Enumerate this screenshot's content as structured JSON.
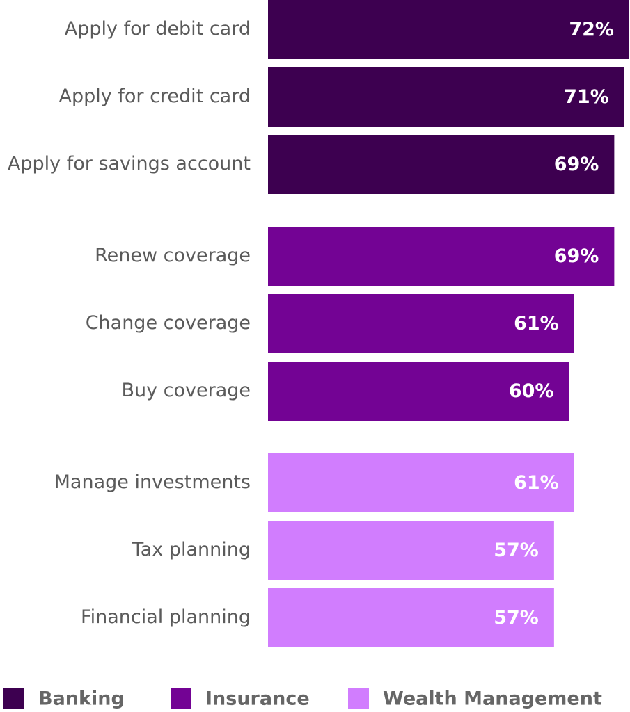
{
  "chart_data": {
    "type": "bar",
    "orientation": "horizontal",
    "categories": [
      "Apply for debit card",
      "Apply for credit card",
      "Apply for savings account",
      "Renew coverage",
      "Change coverage",
      "Buy coverage",
      "Manage investments",
      "Tax planning",
      "Financial planning"
    ],
    "series": [
      {
        "name": "Banking",
        "color": "#3d0050",
        "values": [
          72,
          71,
          69,
          null,
          null,
          null,
          null,
          null,
          null
        ],
        "value_labels": [
          "72%",
          "71%",
          "69%",
          null,
          null,
          null,
          null,
          null,
          null
        ]
      },
      {
        "name": "Insurance",
        "color": "#730394",
        "values": [
          null,
          null,
          null,
          69,
          61,
          60,
          null,
          null,
          null
        ],
        "value_labels": [
          null,
          null,
          null,
          "69%",
          "61%",
          "60%",
          null,
          null,
          null
        ]
      },
      {
        "name": "Wealth Management",
        "color": "#d17dfe",
        "values": [
          null,
          null,
          null,
          null,
          null,
          null,
          61,
          57,
          57
        ],
        "value_labels": [
          null,
          null,
          null,
          null,
          null,
          null,
          "61%",
          "57%",
          "57%"
        ]
      }
    ],
    "legend": "bottom"
  }
}
